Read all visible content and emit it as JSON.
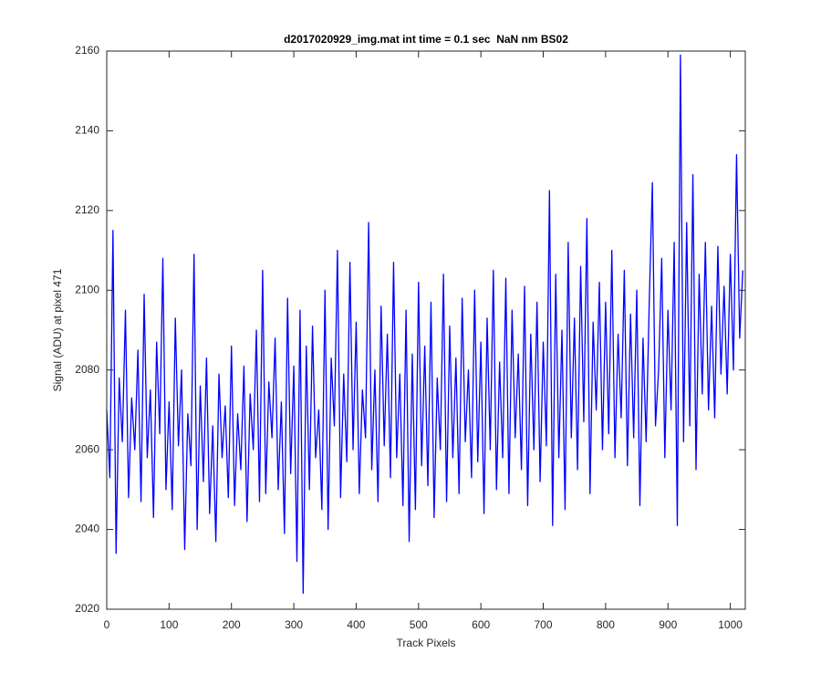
{
  "chart_data": {
    "type": "line",
    "title": "d2017020929_img.mat int time = 0.1 sec  NaN nm BS02",
    "x_label": "Track Pixels",
    "y_label": "Signal (ADU) at pixel 471",
    "xlim": [
      0,
      1024
    ],
    "ylim": [
      2020,
      2160
    ],
    "xticks": [
      0,
      100,
      200,
      300,
      400,
      500,
      600,
      700,
      800,
      900,
      1000
    ],
    "yticks": [
      2020,
      2040,
      2060,
      2080,
      2100,
      2120,
      2140,
      2160
    ],
    "grid": false,
    "series": [
      {
        "color": "#0000ff",
        "x": [
          0,
          5,
          10,
          15,
          20,
          25,
          30,
          35,
          40,
          45,
          50,
          55,
          60,
          65,
          70,
          75,
          80,
          85,
          90,
          95,
          100,
          105,
          110,
          115,
          120,
          125,
          130,
          135,
          140,
          145,
          150,
          155,
          160,
          165,
          170,
          175,
          180,
          185,
          190,
          195,
          200,
          205,
          210,
          215,
          220,
          225,
          230,
          235,
          240,
          245,
          250,
          255,
          260,
          265,
          270,
          275,
          280,
          285,
          290,
          295,
          300,
          305,
          310,
          315,
          320,
          325,
          330,
          335,
          340,
          345,
          350,
          355,
          360,
          365,
          370,
          375,
          380,
          385,
          390,
          395,
          400,
          405,
          410,
          415,
          420,
          425,
          430,
          435,
          440,
          445,
          450,
          455,
          460,
          465,
          470,
          475,
          480,
          485,
          490,
          495,
          500,
          505,
          510,
          515,
          520,
          525,
          530,
          535,
          540,
          545,
          550,
          555,
          560,
          565,
          570,
          575,
          580,
          585,
          590,
          595,
          600,
          605,
          610,
          615,
          620,
          625,
          630,
          635,
          640,
          645,
          650,
          655,
          660,
          665,
          670,
          675,
          680,
          685,
          690,
          695,
          700,
          705,
          710,
          715,
          720,
          725,
          730,
          735,
          740,
          745,
          750,
          755,
          760,
          765,
          770,
          775,
          780,
          785,
          790,
          795,
          800,
          805,
          810,
          815,
          820,
          825,
          830,
          835,
          840,
          845,
          850,
          855,
          860,
          865,
          870,
          875,
          880,
          885,
          890,
          895,
          900,
          905,
          910,
          915,
          920,
          925,
          930,
          935,
          940,
          945,
          950,
          955,
          960,
          965,
          970,
          975,
          980,
          985,
          990,
          995,
          1000,
          1005,
          1010,
          1015,
          1020
        ],
        "values": [
          2070,
          2053,
          2115,
          2034,
          2078,
          2062,
          2095,
          2048,
          2073,
          2060,
          2085,
          2047,
          2099,
          2058,
          2075,
          2043,
          2087,
          2064,
          2108,
          2050,
          2072,
          2045,
          2093,
          2061,
          2080,
          2035,
          2069,
          2056,
          2109,
          2040,
          2076,
          2052,
          2083,
          2044,
          2066,
          2037,
          2079,
          2058,
          2071,
          2048,
          2086,
          2046,
          2069,
          2055,
          2081,
          2042,
          2074,
          2060,
          2090,
          2047,
          2105,
          2049,
          2077,
          2063,
          2088,
          2050,
          2072,
          2039,
          2098,
          2054,
          2081,
          2032,
          2095,
          2024,
          2086,
          2050,
          2091,
          2058,
          2070,
          2045,
          2100,
          2040,
          2083,
          2066,
          2110,
          2048,
          2079,
          2057,
          2107,
          2060,
          2092,
          2049,
          2075,
          2063,
          2117,
          2055,
          2080,
          2047,
          2096,
          2061,
          2089,
          2053,
          2107,
          2058,
          2079,
          2046,
          2095,
          2037,
          2084,
          2045,
          2102,
          2056,
          2086,
          2051,
          2097,
          2043,
          2078,
          2060,
          2104,
          2047,
          2091,
          2058,
          2083,
          2049,
          2098,
          2062,
          2080,
          2053,
          2100,
          2057,
          2087,
          2044,
          2093,
          2060,
          2105,
          2050,
          2082,
          2058,
          2103,
          2049,
          2095,
          2063,
          2084,
          2055,
          2101,
          2046,
          2089,
          2060,
          2097,
          2052,
          2087,
          2061,
          2125,
          2041,
          2104,
          2058,
          2090,
          2045,
          2112,
          2063,
          2093,
          2055,
          2106,
          2067,
          2118,
          2049,
          2092,
          2070,
          2102,
          2060,
          2097,
          2064,
          2110,
          2058,
          2089,
          2068,
          2105,
          2056,
          2094,
          2063,
          2100,
          2046,
          2088,
          2062,
          2097,
          2127,
          2066,
          2080,
          2108,
          2058,
          2095,
          2070,
          2112,
          2041,
          2159,
          2062,
          2117,
          2066,
          2129,
          2055,
          2104,
          2074,
          2112,
          2070,
          2096,
          2068,
          2111,
          2079,
          2101,
          2074,
          2109,
          2080,
          2134,
          2088,
          2105
        ]
      }
    ]
  }
}
